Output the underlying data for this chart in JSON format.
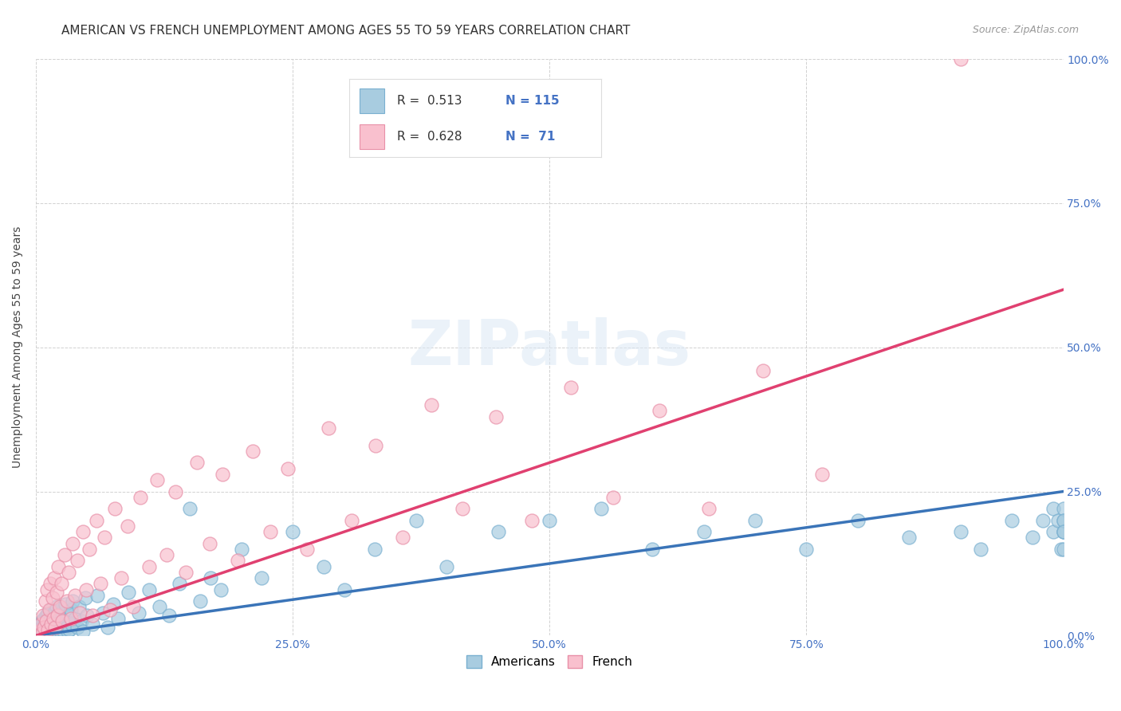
{
  "title": "AMERICAN VS FRENCH UNEMPLOYMENT AMONG AGES 55 TO 59 YEARS CORRELATION CHART",
  "source": "Source: ZipAtlas.com",
  "ylabel": "Unemployment Among Ages 55 to 59 years",
  "xlim": [
    0,
    1.0
  ],
  "ylim": [
    0,
    1.0
  ],
  "xtick_labels": [
    "0.0%",
    "25.0%",
    "50.0%",
    "75.0%",
    "100.0%"
  ],
  "ytick_labels_right": [
    "0.0%",
    "25.0%",
    "50.0%",
    "75.0%",
    "100.0%"
  ],
  "american_color": "#a8cce0",
  "american_edge_color": "#7ab0d0",
  "french_color": "#f9c0ce",
  "french_edge_color": "#e890a8",
  "american_line_color": "#3a74b8",
  "french_line_color": "#e04070",
  "R_american": 0.513,
  "N_american": 115,
  "R_french": 0.628,
  "N_french": 71,
  "background_color": "#ffffff",
  "grid_color": "#cccccc",
  "title_fontsize": 11,
  "axis_label_fontsize": 10,
  "tick_fontsize": 10,
  "am_line_start_y": 0.0,
  "am_line_end_y": 0.25,
  "fr_line_start_y": 0.0,
  "fr_line_end_y": 0.6,
  "american_x": [
    0.003,
    0.004,
    0.005,
    0.005,
    0.006,
    0.006,
    0.007,
    0.007,
    0.008,
    0.008,
    0.008,
    0.009,
    0.009,
    0.01,
    0.01,
    0.01,
    0.011,
    0.011,
    0.012,
    0.012,
    0.012,
    0.013,
    0.013,
    0.014,
    0.014,
    0.015,
    0.015,
    0.015,
    0.016,
    0.016,
    0.017,
    0.017,
    0.018,
    0.018,
    0.019,
    0.019,
    0.02,
    0.02,
    0.02,
    0.021,
    0.021,
    0.022,
    0.022,
    0.023,
    0.023,
    0.024,
    0.025,
    0.025,
    0.026,
    0.027,
    0.028,
    0.029,
    0.03,
    0.031,
    0.032,
    0.033,
    0.034,
    0.035,
    0.036,
    0.038,
    0.04,
    0.042,
    0.044,
    0.046,
    0.048,
    0.05,
    0.055,
    0.06,
    0.065,
    0.07,
    0.075,
    0.08,
    0.09,
    0.1,
    0.11,
    0.12,
    0.13,
    0.14,
    0.15,
    0.16,
    0.17,
    0.18,
    0.2,
    0.22,
    0.25,
    0.28,
    0.3,
    0.33,
    0.37,
    0.4,
    0.45,
    0.5,
    0.55,
    0.6,
    0.65,
    0.7,
    0.75,
    0.8,
    0.85,
    0.9,
    0.92,
    0.95,
    0.97,
    0.98,
    0.99,
    0.99,
    0.995,
    0.998,
    1.0,
    1.0,
    1.0,
    1.0,
    1.0,
    1.0,
    1.0
  ],
  "american_y": [
    0.01,
    0.015,
    0.005,
    0.02,
    0.008,
    0.025,
    0.012,
    0.003,
    0.018,
    0.007,
    0.03,
    0.01,
    0.022,
    0.005,
    0.015,
    0.035,
    0.008,
    0.028,
    0.003,
    0.02,
    0.04,
    0.012,
    0.025,
    0.006,
    0.018,
    0.003,
    0.03,
    0.045,
    0.01,
    0.022,
    0.005,
    0.035,
    0.015,
    0.028,
    0.008,
    0.042,
    0.003,
    0.02,
    0.05,
    0.012,
    0.025,
    0.006,
    0.038,
    0.015,
    0.048,
    0.01,
    0.005,
    0.03,
    0.02,
    0.008,
    0.025,
    0.055,
    0.015,
    0.008,
    0.035,
    0.01,
    0.045,
    0.02,
    0.06,
    0.03,
    0.015,
    0.05,
    0.025,
    0.008,
    0.065,
    0.035,
    0.02,
    0.07,
    0.04,
    0.015,
    0.055,
    0.03,
    0.075,
    0.04,
    0.08,
    0.05,
    0.035,
    0.09,
    0.22,
    0.06,
    0.1,
    0.08,
    0.15,
    0.1,
    0.18,
    0.12,
    0.08,
    0.15,
    0.2,
    0.12,
    0.18,
    0.2,
    0.22,
    0.15,
    0.18,
    0.2,
    0.15,
    0.2,
    0.17,
    0.18,
    0.15,
    0.2,
    0.17,
    0.2,
    0.22,
    0.18,
    0.2,
    0.15,
    0.18,
    0.2,
    0.22,
    0.18,
    0.2,
    0.15,
    0.18
  ],
  "french_x": [
    0.003,
    0.005,
    0.006,
    0.007,
    0.008,
    0.009,
    0.01,
    0.011,
    0.012,
    0.013,
    0.014,
    0.015,
    0.016,
    0.017,
    0.018,
    0.019,
    0.02,
    0.021,
    0.022,
    0.023,
    0.025,
    0.026,
    0.028,
    0.03,
    0.032,
    0.034,
    0.036,
    0.038,
    0.04,
    0.043,
    0.046,
    0.049,
    0.052,
    0.055,
    0.059,
    0.063,
    0.067,
    0.072,
    0.077,
    0.083,
    0.089,
    0.095,
    0.102,
    0.11,
    0.118,
    0.127,
    0.136,
    0.146,
    0.157,
    0.169,
    0.182,
    0.196,
    0.211,
    0.228,
    0.245,
    0.264,
    0.285,
    0.307,
    0.331,
    0.357,
    0.385,
    0.415,
    0.448,
    0.483,
    0.521,
    0.562,
    0.607,
    0.655,
    0.708,
    0.765,
    0.9
  ],
  "french_y": [
    0.008,
    0.02,
    0.005,
    0.035,
    0.015,
    0.06,
    0.025,
    0.08,
    0.01,
    0.045,
    0.09,
    0.02,
    0.065,
    0.03,
    0.1,
    0.015,
    0.075,
    0.035,
    0.12,
    0.05,
    0.09,
    0.025,
    0.14,
    0.06,
    0.11,
    0.03,
    0.16,
    0.07,
    0.13,
    0.04,
    0.18,
    0.08,
    0.15,
    0.035,
    0.2,
    0.09,
    0.17,
    0.045,
    0.22,
    0.1,
    0.19,
    0.05,
    0.24,
    0.12,
    0.27,
    0.14,
    0.25,
    0.11,
    0.3,
    0.16,
    0.28,
    0.13,
    0.32,
    0.18,
    0.29,
    0.15,
    0.36,
    0.2,
    0.33,
    0.17,
    0.4,
    0.22,
    0.38,
    0.2,
    0.43,
    0.24,
    0.39,
    0.22,
    0.46,
    0.28,
    1.0
  ]
}
